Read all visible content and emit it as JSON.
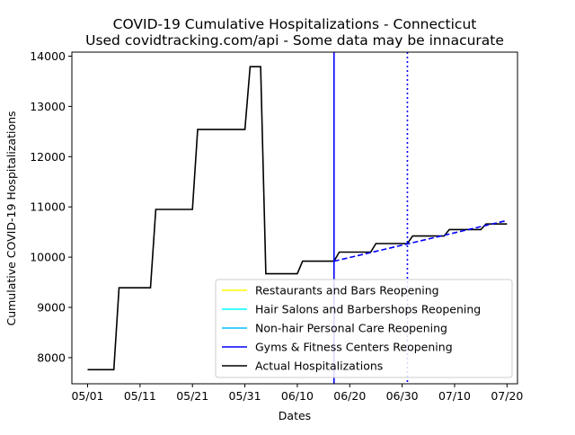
{
  "chart_data": {
    "type": "line",
    "title": "COVID-19 Cumulative Hospitalizations - Connecticut",
    "subtitle": "Used covidtracking.com/api - Some data may be innacurate",
    "xlabel": "Dates",
    "ylabel": "Cumulative COVID-19 Hospitalizations",
    "xlim": [
      "2020-04-28",
      "2020-07-22"
    ],
    "ylim": [
      7480,
      14080
    ],
    "x_ticks": [
      {
        "date": "2020-05-01",
        "label": "05/01"
      },
      {
        "date": "2020-05-11",
        "label": "05/11"
      },
      {
        "date": "2020-05-21",
        "label": "05/21"
      },
      {
        "date": "2020-05-31",
        "label": "05/31"
      },
      {
        "date": "2020-06-10",
        "label": "06/10"
      },
      {
        "date": "2020-06-20",
        "label": "06/20"
      },
      {
        "date": "2020-06-30",
        "label": "06/30"
      },
      {
        "date": "2020-07-10",
        "label": "07/10"
      },
      {
        "date": "2020-07-20",
        "label": "07/20"
      }
    ],
    "y_ticks": [
      8000,
      9000,
      10000,
      11000,
      12000,
      13000,
      14000
    ],
    "grid": false,
    "legend_position": "lower-right",
    "legend": [
      {
        "label": "Restaurants and Bars Reopening",
        "color": "#ffff00"
      },
      {
        "label": "Hair Salons and Barbershops Reopening",
        "color": "#00ffff"
      },
      {
        "label": "Non-hair Personal Care Reopening",
        "color": "#00bfff"
      },
      {
        "label": "Gyms & Fitness Centers Reopening",
        "color": "#0000ff"
      },
      {
        "label": "Actual Hospitalizations",
        "color": "#000000"
      }
    ],
    "vertical_lines": [
      {
        "date": "2020-06-17",
        "color": "#0000ff",
        "style": "solid"
      },
      {
        "date": "2020-07-01",
        "color": "#0000ff",
        "style": "dotted"
      }
    ],
    "series": [
      {
        "name": "Actual Hospitalizations",
        "color": "#000000",
        "style": "step",
        "points": [
          [
            "2020-05-01",
            7760
          ],
          [
            "2020-05-06",
            7760
          ],
          [
            "2020-05-07",
            9390
          ],
          [
            "2020-05-13",
            9390
          ],
          [
            "2020-05-14",
            10950
          ],
          [
            "2020-05-21",
            10950
          ],
          [
            "2020-05-22",
            12540
          ],
          [
            "2020-05-31",
            12540
          ],
          [
            "2020-06-01",
            13790
          ],
          [
            "2020-06-03",
            13790
          ],
          [
            "2020-06-04",
            9670
          ],
          [
            "2020-06-10",
            9670
          ],
          [
            "2020-06-11",
            9920
          ],
          [
            "2020-06-17",
            9920
          ],
          [
            "2020-06-18",
            10100
          ],
          [
            "2020-06-24",
            10100
          ],
          [
            "2020-06-25",
            10270
          ],
          [
            "2020-07-01",
            10270
          ],
          [
            "2020-07-02",
            10420
          ],
          [
            "2020-07-08",
            10420
          ],
          [
            "2020-07-09",
            10550
          ],
          [
            "2020-07-15",
            10550
          ],
          [
            "2020-07-16",
            10660
          ],
          [
            "2020-07-20",
            10660
          ]
        ]
      },
      {
        "name": "",
        "color": "#0000ff",
        "style": "dashed",
        "points": [
          [
            "2020-06-17",
            9920
          ],
          [
            "2020-07-20",
            10730
          ]
        ]
      }
    ]
  }
}
